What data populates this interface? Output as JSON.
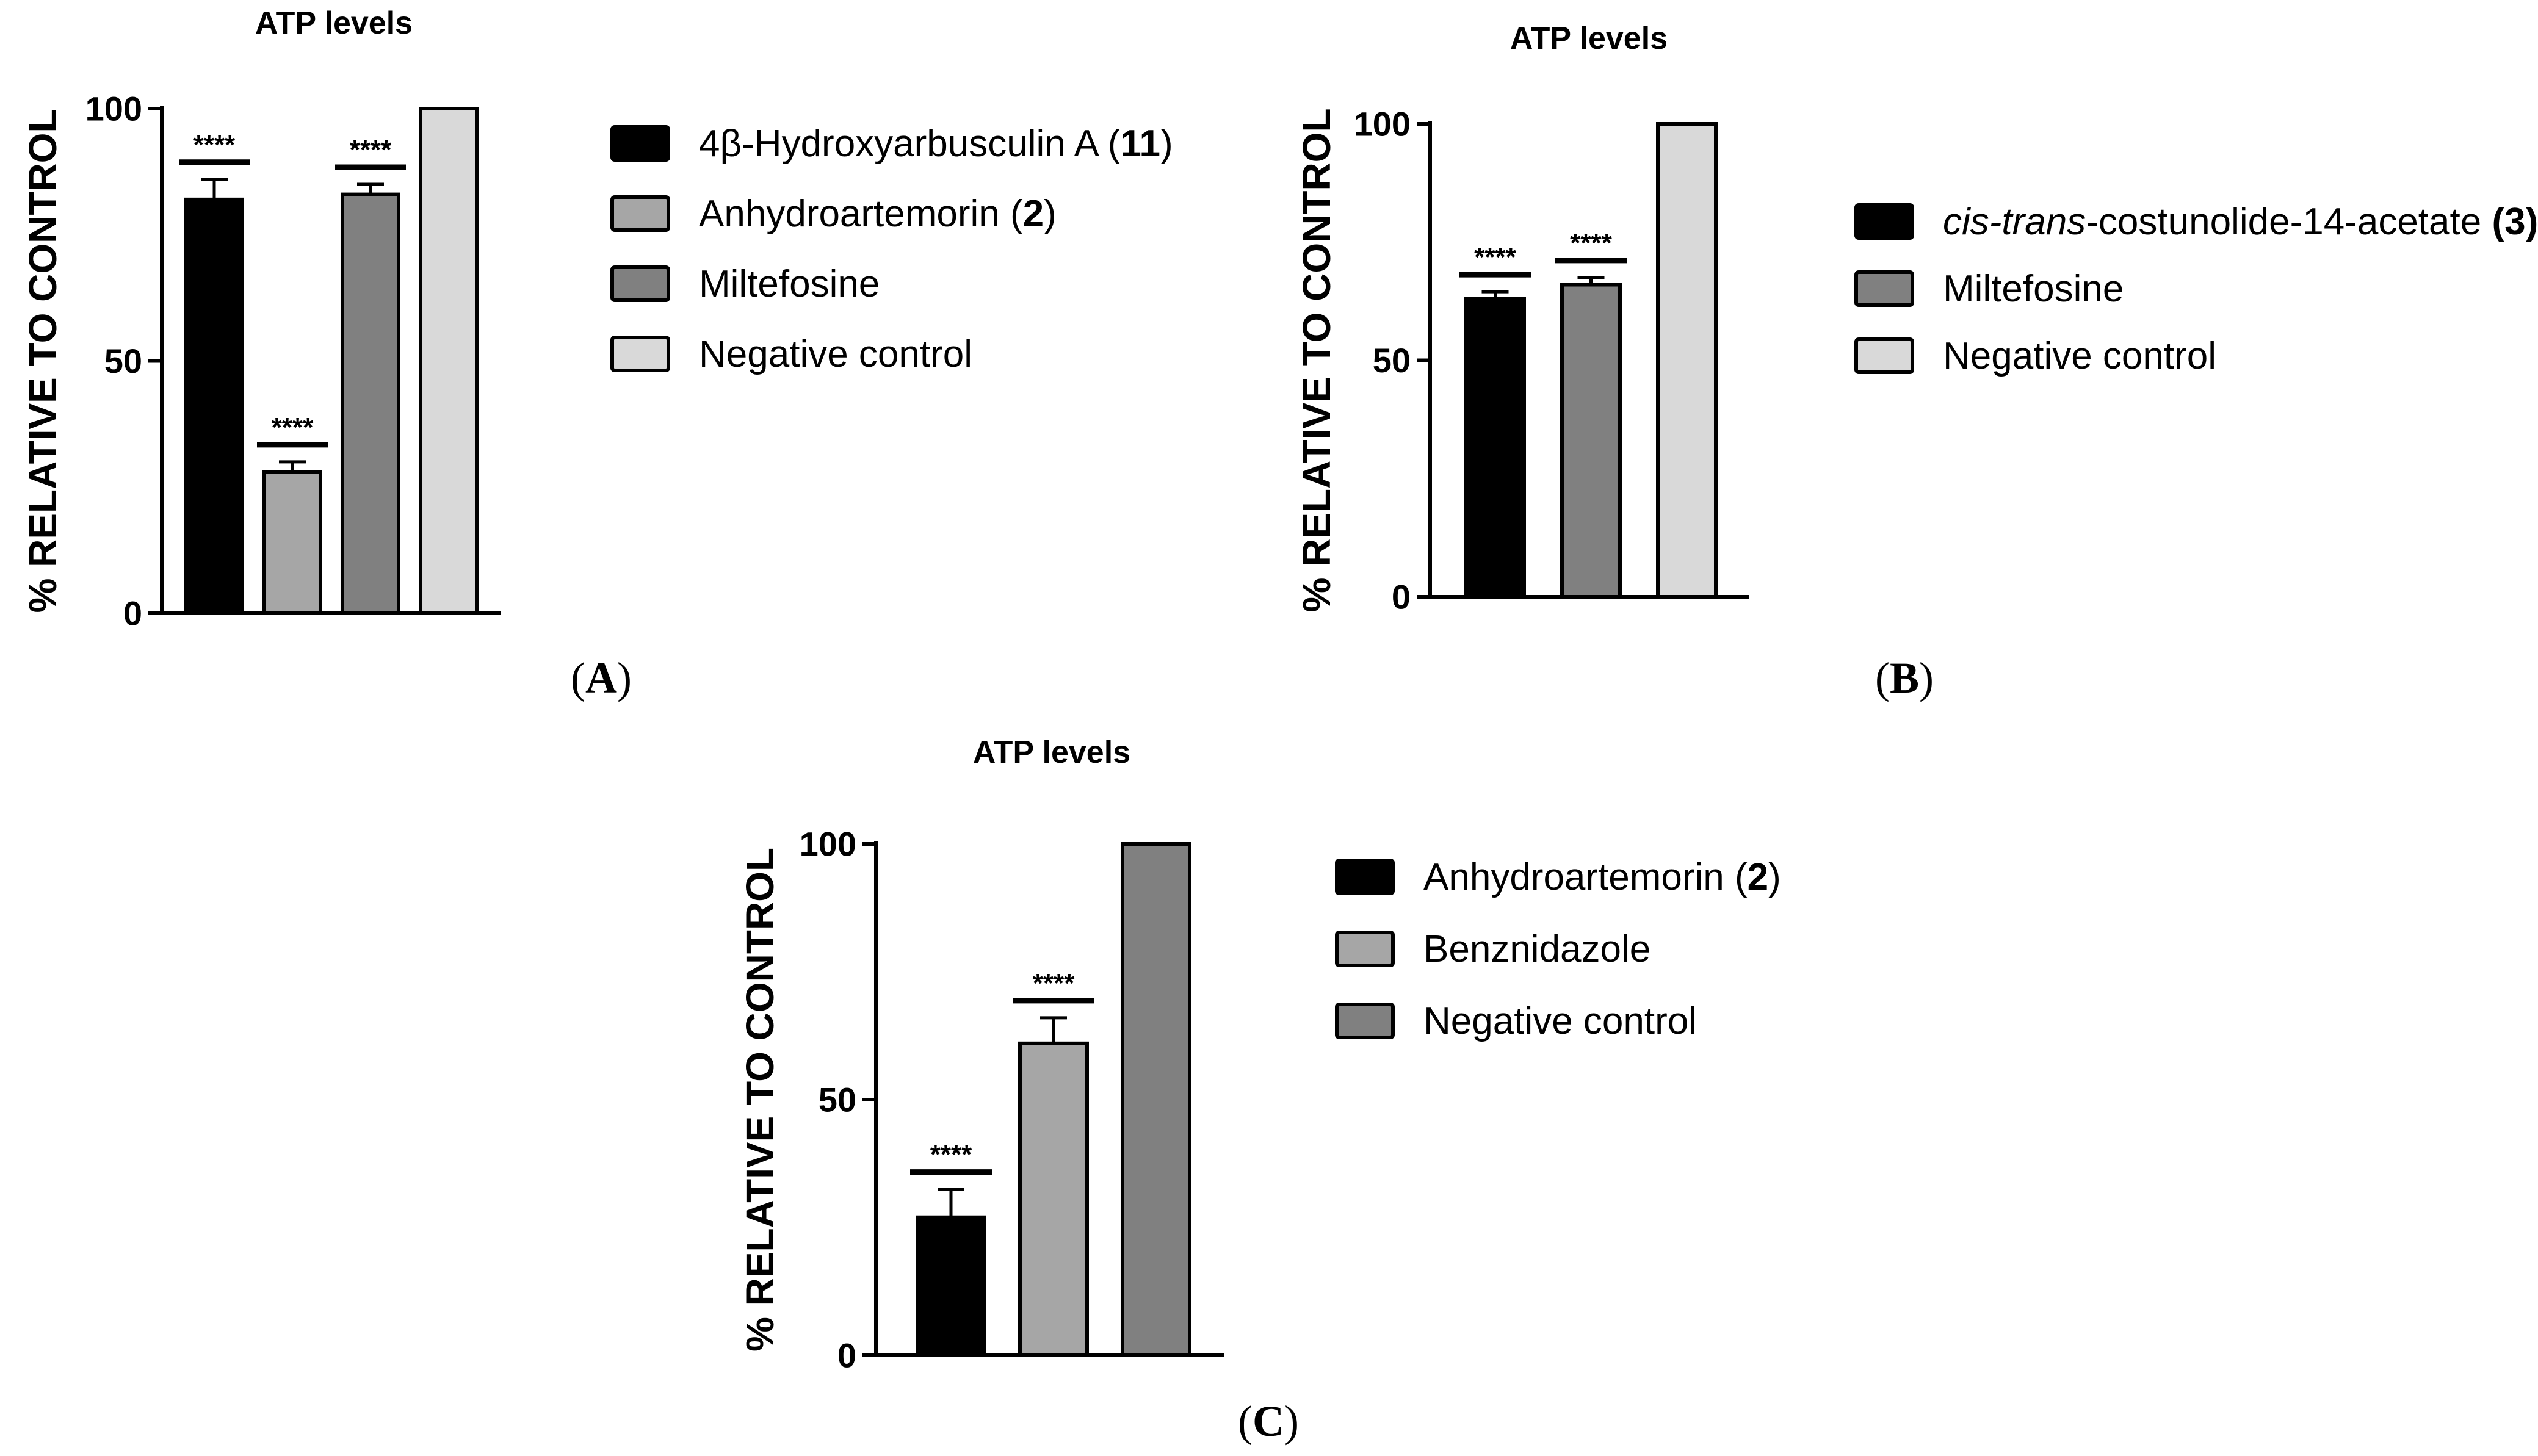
{
  "chart_data": [
    {
      "panel": "A",
      "type": "bar",
      "title": "ATP levels",
      "ylabel": "% RELATIVE TO CONTROL",
      "ylim": [
        0,
        100
      ],
      "yticks": [
        "0",
        "50",
        "100"
      ],
      "ytick_values": [
        0,
        50,
        100
      ],
      "categories": [
        "4β-Hydroxyarbusculin A (11)",
        "Anhydroartemorin (2)",
        "Miltefosine",
        "Negative control"
      ],
      "values": [
        82,
        28,
        83,
        100
      ],
      "errors": [
        4,
        2,
        2,
        0
      ],
      "colors": [
        "#000000",
        "#a6a6a6",
        "#808080",
        "#d9d9d9"
      ],
      "significance": [
        "****",
        "****",
        "****",
        ""
      ],
      "legend": [
        {
          "prefix": "4β-Hydroxyarbusculin A (",
          "italic": "",
          "bold": "11",
          "suffix": ")"
        },
        {
          "prefix": "Anhydroartemorin (",
          "italic": "",
          "bold": "2",
          "suffix": ")"
        },
        {
          "prefix": "Miltefosine",
          "italic": "",
          "bold": "",
          "suffix": ""
        },
        {
          "prefix": "Negative control",
          "italic": "",
          "bold": "",
          "suffix": ""
        }
      ],
      "panel_label": {
        "open": "(",
        "letter": "A",
        "close": ")"
      }
    },
    {
      "panel": "B",
      "type": "bar",
      "title": "ATP levels",
      "ylabel": "% RELATIVE TO CONTROL",
      "ylim": [
        0,
        100
      ],
      "yticks": [
        "0",
        "50",
        "100"
      ],
      "ytick_values": [
        0,
        50,
        100
      ],
      "categories": [
        "cis-trans-costunolide-14-acetate (3)",
        "Miltefosine",
        "Negative control"
      ],
      "values": [
        63,
        66,
        100
      ],
      "errors": [
        1.5,
        1.5,
        0
      ],
      "colors": [
        "#000000",
        "#808080",
        "#d9d9d9"
      ],
      "significance": [
        "****",
        "****",
        ""
      ],
      "legend": [
        {
          "prefix": "",
          "italic": "cis-trans",
          "bold": "",
          "suffix": "-costunolide-14-acetate ",
          "bold2": "(3)"
        },
        {
          "prefix": "Miltefosine",
          "italic": "",
          "bold": "",
          "suffix": ""
        },
        {
          "prefix": "Negative control",
          "italic": "",
          "bold": "",
          "suffix": ""
        }
      ],
      "panel_label": {
        "open": "(",
        "letter": "B",
        "close": ")"
      }
    },
    {
      "panel": "C",
      "type": "bar",
      "title": "ATP levels",
      "ylabel": "% RELATIVE TO CONTROL",
      "ylim": [
        0,
        100
      ],
      "yticks": [
        "0",
        "50",
        "100"
      ],
      "ytick_values": [
        0,
        50,
        100
      ],
      "categories": [
        "Anhydroartemorin (2)",
        "Benznidazole",
        "Negative control"
      ],
      "values": [
        27,
        61,
        100
      ],
      "errors": [
        5.5,
        5,
        0
      ],
      "colors": [
        "#000000",
        "#a6a6a6",
        "#808080"
      ],
      "significance": [
        "****",
        "****",
        ""
      ],
      "legend": [
        {
          "prefix": "Anhydroartemorin (",
          "italic": "",
          "bold": "2",
          "suffix": ")"
        },
        {
          "prefix": "Benznidazole",
          "italic": "",
          "bold": "",
          "suffix": ""
        },
        {
          "prefix": "Negative control",
          "italic": "",
          "bold": "",
          "suffix": ""
        }
      ],
      "panel_label": {
        "open": "(",
        "letter": "C",
        "close": ")"
      }
    }
  ]
}
